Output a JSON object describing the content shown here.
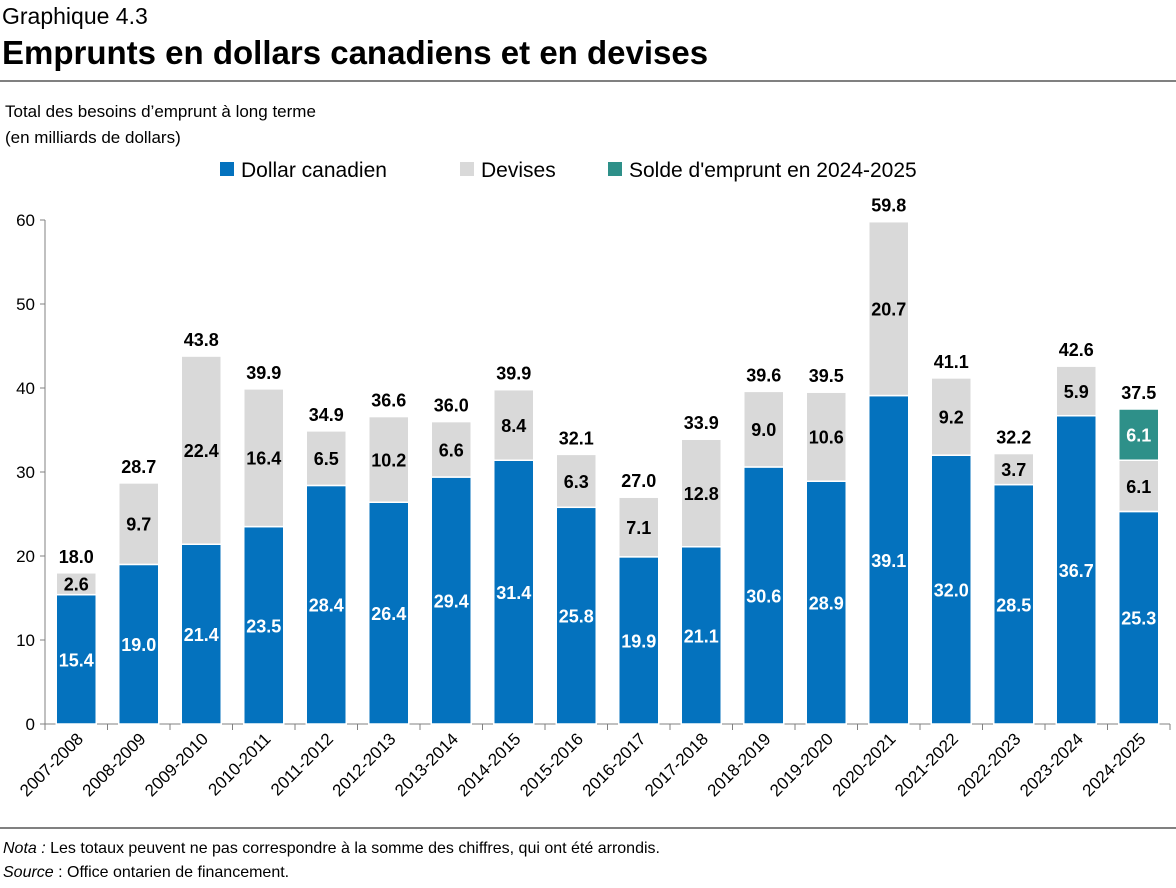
{
  "header": {
    "label": "Graphique 4.3",
    "title": "Emprunts en dollars canadiens et en devises",
    "subtitle_line1": "Total des besoins d’emprunt à long terme",
    "subtitle_line2": "(en milliards de dollars)"
  },
  "footer": {
    "nota_label": "Nota :",
    "nota_text": " Les totaux peuvent ne pas correspondre à la somme des chiffres, qui ont été arrondis.",
    "source_label": "Source",
    "source_text": " : Office ontarien de financement."
  },
  "colors": {
    "cad": "#0472BE",
    "devises": "#D9D9D9",
    "solde": "#2E9089"
  },
  "chart_data": {
    "type": "bar",
    "stacked": true,
    "ylim": [
      0,
      60
    ],
    "yticks": [
      0,
      10,
      20,
      30,
      40,
      50,
      60
    ],
    "grid": false,
    "legend_position": "top",
    "categories": [
      "2007-2008",
      "2008-2009",
      "2009-2010",
      "2010-2011",
      "2011-2012",
      "2012-2013",
      "2013-2014",
      "2014-2015",
      "2015-2016",
      "2016-2017",
      "2017-2018",
      "2018-2019",
      "2019-2020",
      "2020-2021",
      "2021-2022",
      "2022-2023",
      "2023-2024",
      "2024-2025"
    ],
    "series": [
      {
        "name": "Dollar canadien",
        "values": [
          15.4,
          19.0,
          21.4,
          23.5,
          28.4,
          26.4,
          29.4,
          31.4,
          25.8,
          19.9,
          21.1,
          30.6,
          28.9,
          39.1,
          32.0,
          28.5,
          36.7,
          25.3
        ]
      },
      {
        "name": "Devises",
        "values": [
          2.6,
          9.7,
          22.4,
          16.4,
          6.5,
          10.2,
          6.6,
          8.4,
          6.3,
          7.1,
          12.8,
          9.0,
          10.6,
          20.7,
          9.2,
          3.7,
          5.9,
          6.1
        ]
      },
      {
        "name": "Solde d'emprunt en 2024-2025",
        "values": [
          null,
          null,
          null,
          null,
          null,
          null,
          null,
          null,
          null,
          null,
          null,
          null,
          null,
          null,
          null,
          null,
          null,
          6.1
        ]
      }
    ],
    "totals": [
      "18.0",
      "28.7",
      "43.8",
      "39.9",
      "34.9",
      "36.6",
      "36.0",
      "39.9",
      "32.1",
      "27.0",
      "33.9",
      "39.6",
      "39.5",
      "59.8",
      "41.1",
      "32.2",
      "42.6",
      "37.5"
    ]
  }
}
